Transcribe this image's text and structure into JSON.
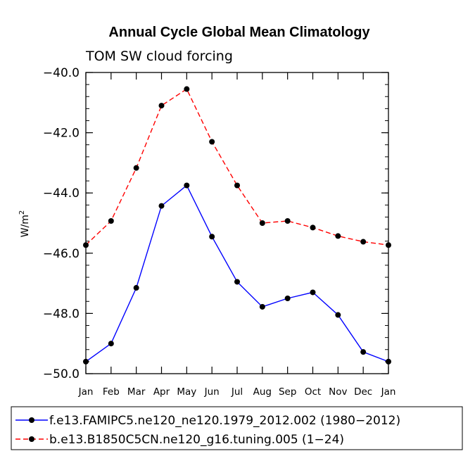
{
  "chart_data": {
    "type": "line",
    "title": "Annual Cycle Global Mean Climatology",
    "subtitle": "TOM SW cloud forcing",
    "ylabel_base": "W/m",
    "ylabel_sup": "2",
    "xlabel": "",
    "categories": [
      "Jan",
      "Feb",
      "Mar",
      "Apr",
      "May",
      "Jun",
      "Jul",
      "Aug",
      "Sep",
      "Oct",
      "Nov",
      "Dec",
      "Jan"
    ],
    "ylim": [
      -50.0,
      -40.0
    ],
    "yticks": [
      -50.0,
      -48.0,
      -46.0,
      -44.0,
      -42.0,
      -40.0
    ],
    "ytick_labels": [
      "−50.0",
      "−48.0",
      "−46.0",
      "−44.0",
      "−42.0",
      "−40.0"
    ],
    "minor_step": 0.4,
    "series": [
      {
        "name": "f.e13.FAMIPC5.ne120_ne120.1979_2012.002 (1980−2012)",
        "color": "#0000ff",
        "dash": "solid",
        "values": [
          -49.6,
          -49.0,
          -47.15,
          -44.43,
          -43.75,
          -45.45,
          -46.95,
          -47.78,
          -47.5,
          -47.3,
          -48.05,
          -49.28,
          -49.6
        ]
      },
      {
        "name": "b.e13.B1850C5CN.ne120_g16.tuning.005 (1−24)",
        "color": "#ff0000",
        "dash": "dashed",
        "values": [
          -45.73,
          -44.93,
          -43.17,
          -41.1,
          -40.55,
          -42.3,
          -43.75,
          -45.0,
          -44.93,
          -45.15,
          -45.43,
          -45.62,
          -45.73
        ]
      }
    ],
    "legend_position": "bottom",
    "grid": false
  }
}
